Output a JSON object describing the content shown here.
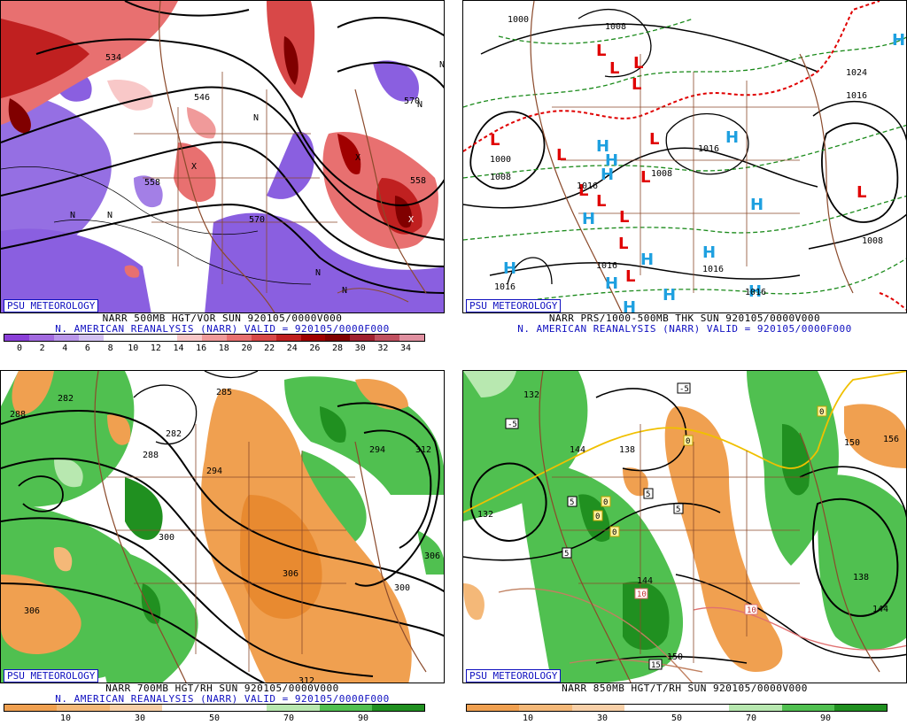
{
  "panels": [
    {
      "id": "p1",
      "badge": "PSU METEOROLOGY",
      "line1": "NARR 500MB HGT/VOR SUN 920105/0000V000",
      "line2": "N. AMERICAN REANALYSIS (NARR) VALID = 920105/0000F000",
      "colorbar": {
        "colors": [
          "#8a3fd8",
          "#a26ae0",
          "#b996ea",
          "#d3c2f2",
          "#ffffff",
          "#ffffff",
          "#ffffff",
          "#f8c8c8",
          "#f09a9a",
          "#e87070",
          "#d84848",
          "#c02020",
          "#a00000",
          "#800000",
          "#a02030",
          "#c05060",
          "#e090a0"
        ],
        "ticks": [
          "0",
          "2",
          "4",
          "6",
          "8",
          "10",
          "12",
          "14",
          "16",
          "18",
          "20",
          "22",
          "24",
          "26",
          "28",
          "30",
          "32",
          "34"
        ]
      },
      "labels": [
        "534",
        "546",
        "558",
        "570",
        "558",
        "570"
      ]
    },
    {
      "id": "p2",
      "badge": "PSU METEOROLOGY",
      "line1": "NARR PRS/1000-500MB THK SUN 920105/0000V000",
      "line2": "N. AMERICAN REANALYSIS (NARR) VALID = 920105/0000F000",
      "labels": [
        "1000",
        "1008",
        "1000",
        "1008",
        "1016",
        "1008",
        "1016",
        "1016",
        "1008",
        "1016",
        "1016",
        "1016",
        "1016",
        "1024"
      ],
      "highs": "H",
      "lows": "L"
    },
    {
      "id": "p3",
      "badge": "PSU METEOROLOGY",
      "line1": "NARR 700MB HGT/RH SUN 920105/0000V000",
      "line2": "N. AMERICAN REANALYSIS (NARR) VALID = 920105/0000F000",
      "colorbar": {
        "colors": [
          "#f0a050",
          "#f4b878",
          "#f8d0a8",
          "#ffffff",
          "#ffffff",
          "#b8e8b0",
          "#50c050",
          "#209020"
        ],
        "ticks": [
          "10",
          "30",
          "50",
          "70",
          "90"
        ]
      },
      "labels": [
        "288",
        "282",
        "285",
        "282",
        "288",
        "294",
        "300",
        "306",
        "312",
        "306",
        "300",
        "294",
        "306",
        "312"
      ]
    },
    {
      "id": "p4",
      "badge": "PSU METEOROLOGY",
      "line1": "NARR 850MB HGT/T/RH SUN 920105/0000V000",
      "colorbar": {
        "colors": [
          "#f0a050",
          "#f4b878",
          "#f8d0a8",
          "#ffffff",
          "#ffffff",
          "#b8e8b0",
          "#50c050",
          "#209020"
        ],
        "ticks": [
          "10",
          "30",
          "50",
          "70",
          "90"
        ]
      },
      "labels": [
        "132",
        "132",
        "138",
        "144",
        "150",
        "156",
        "144",
        "150",
        "138",
        "144"
      ],
      "temp_labels": [
        "-5",
        "-5",
        "5",
        "5",
        "5",
        "0",
        "0",
        "0",
        "0",
        "5",
        "10",
        "10",
        "15",
        "0"
      ]
    }
  ]
}
